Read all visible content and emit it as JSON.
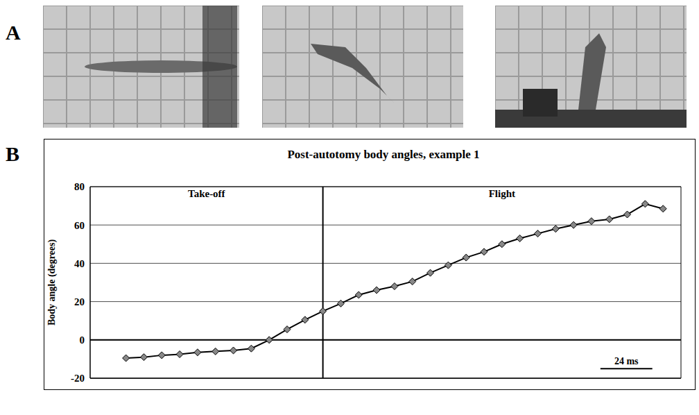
{
  "panel_labels": [
    "A",
    "B"
  ],
  "chart_data": {
    "type": "line",
    "title": "Post-autotomy body angles, example 1",
    "y_label": "Body angle (degrees)",
    "x": [
      0,
      1,
      2,
      3,
      4,
      5,
      6,
      7,
      8,
      9,
      10,
      11,
      12,
      13,
      14,
      15,
      16,
      17,
      18,
      19,
      20,
      21,
      22,
      23,
      24,
      25,
      26,
      27,
      28,
      29,
      30
    ],
    "values": [
      -9.5,
      -9,
      -8,
      -7.5,
      -6.5,
      -6,
      -5.5,
      -4.5,
      0,
      5.5,
      10.5,
      15,
      19,
      23.5,
      26,
      28,
      30.5,
      35,
      39,
      43,
      46,
      50,
      53,
      55.5,
      58,
      60,
      62,
      63,
      65.5,
      71,
      68.5
    ],
    "color": "#000000",
    "marker": "diamond",
    "xlim": [
      -2,
      31
    ],
    "ylim": [
      -20,
      80
    ],
    "yticks": [
      -20,
      0,
      20,
      40,
      60,
      80
    ],
    "grid": true,
    "tick_labels": "y",
    "phases": [
      {
        "label": "Take-off",
        "start": -2,
        "end": 11
      },
      {
        "label": "Flight",
        "start": 11,
        "end": 31
      }
    ],
    "scale_bar": {
      "label": "24 ms",
      "start": 26.5,
      "length": 2.9,
      "y": -15
    }
  }
}
